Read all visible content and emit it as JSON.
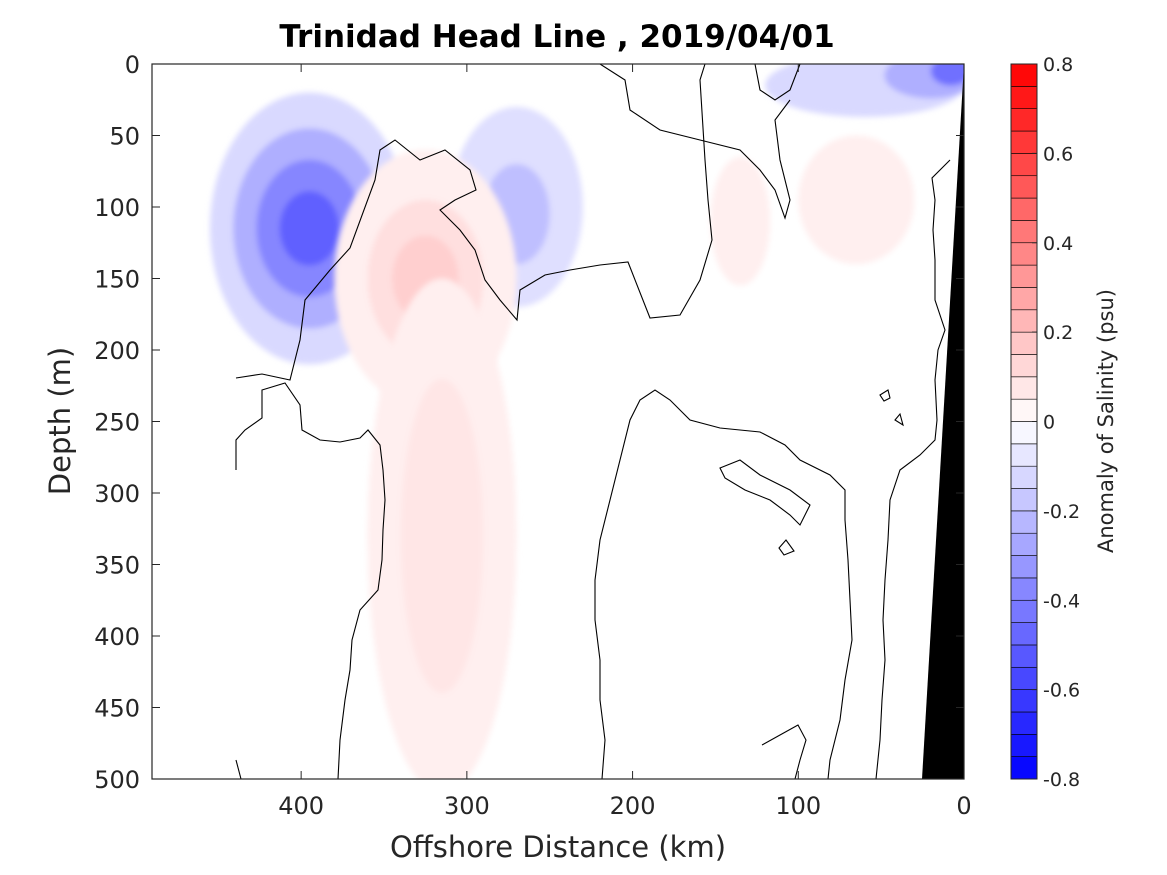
{
  "chart_data": {
    "type": "contour",
    "title": "Trinidad Head Line , 2019/04/01",
    "xlabel": "Offshore Distance (km)",
    "ylabel": "Depth (m)",
    "xlim": [
      490,
      0
    ],
    "ylim": [
      0,
      500
    ],
    "y_reversed": true,
    "x_reversed": true,
    "xticks": [
      400,
      300,
      200,
      100,
      0
    ],
    "yticks": [
      0,
      50,
      100,
      150,
      200,
      250,
      300,
      350,
      400,
      450,
      500
    ],
    "colorbar": {
      "label": "Anomaly of Salinity (psu)",
      "range": [
        -0.8,
        0.8
      ],
      "step": 0.05,
      "ticks": [
        -0.8,
        -0.6,
        -0.4,
        -0.2,
        0,
        0.2,
        0.4,
        0.6,
        0.8
      ],
      "tick_labels": [
        "-0.8",
        "-0.6",
        "-0.4",
        "-0.2",
        "0",
        "0.2",
        "0.4",
        "0.6",
        "0.8"
      ],
      "colormap": "blue-white-red",
      "neg_color": "#0000ff",
      "pos_color": "#ff0000"
    },
    "data_extent_x": [
      441,
      0
    ],
    "features": [
      {
        "name": "fresh core offshore",
        "type": "negative",
        "x": 395,
        "depth": 115,
        "value": -0.55
      },
      {
        "name": "fresh layer nearshore surface",
        "type": "negative",
        "x": 5,
        "depth": 5,
        "value": -0.5
      },
      {
        "name": "fresh patch mid-shelf",
        "type": "negative",
        "x": 270,
        "depth": 100,
        "value": -0.2
      },
      {
        "name": "salty tongue core",
        "type": "positive",
        "x": 320,
        "depth": 150,
        "value": 0.15
      },
      {
        "name": "salty tongue deep",
        "type": "positive",
        "x": 315,
        "depth": 340,
        "value": 0.08
      },
      {
        "name": "salty patch shelf",
        "type": "positive",
        "x": 65,
        "depth": 90,
        "value": 0.05
      }
    ],
    "zero_contour": true,
    "seafloor_color": "#000000"
  }
}
